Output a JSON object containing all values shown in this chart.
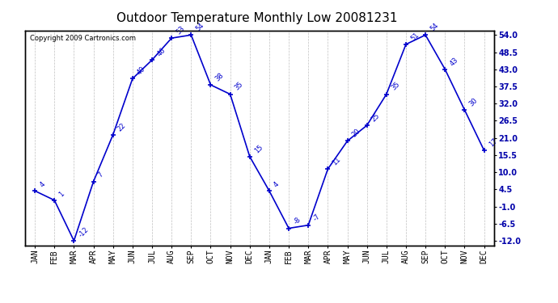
{
  "title": "Outdoor Temperature Monthly Low 20081231",
  "copyright": "Copyright 2009 Cartronics.com",
  "x_labels": [
    "JAN",
    "FEB",
    "MAR",
    "APR",
    "MAY",
    "JUN",
    "JUL",
    "AUG",
    "SEP",
    "OCT",
    "NOV",
    "DEC",
    "JAN",
    "FEB",
    "MAR",
    "APR",
    "MAY",
    "JUN",
    "JUL",
    "AUG",
    "SEP",
    "OCT",
    "NOV",
    "DEC"
  ],
  "values": [
    4,
    1,
    -12,
    7,
    22,
    40,
    46,
    53,
    54,
    38,
    35,
    15,
    4,
    -8,
    -7,
    11,
    20,
    25,
    35,
    51,
    54,
    43,
    30,
    17
  ],
  "point_labels": [
    "4",
    "1",
    "-12",
    "7",
    "22",
    "40",
    "46",
    "53",
    "54",
    "38",
    "35",
    "15",
    "4",
    "-8",
    "-7",
    "11",
    "20",
    "25",
    "35",
    "51",
    "54",
    "43",
    "30",
    "17"
  ],
  "line_color": "#0000cc",
  "marker_color": "#0000cc",
  "background_color": "#ffffff",
  "grid_color": "#b0b0b0",
  "ylim_min": -12.0,
  "ylim_max": 54.0,
  "yticks": [
    -12.0,
    -6.5,
    -1.0,
    4.5,
    10.0,
    15.5,
    21.0,
    26.5,
    32.0,
    37.5,
    43.0,
    48.5,
    54.0
  ],
  "title_fontsize": 11,
  "label_fontsize": 6,
  "tick_fontsize": 7,
  "copyright_fontsize": 6
}
